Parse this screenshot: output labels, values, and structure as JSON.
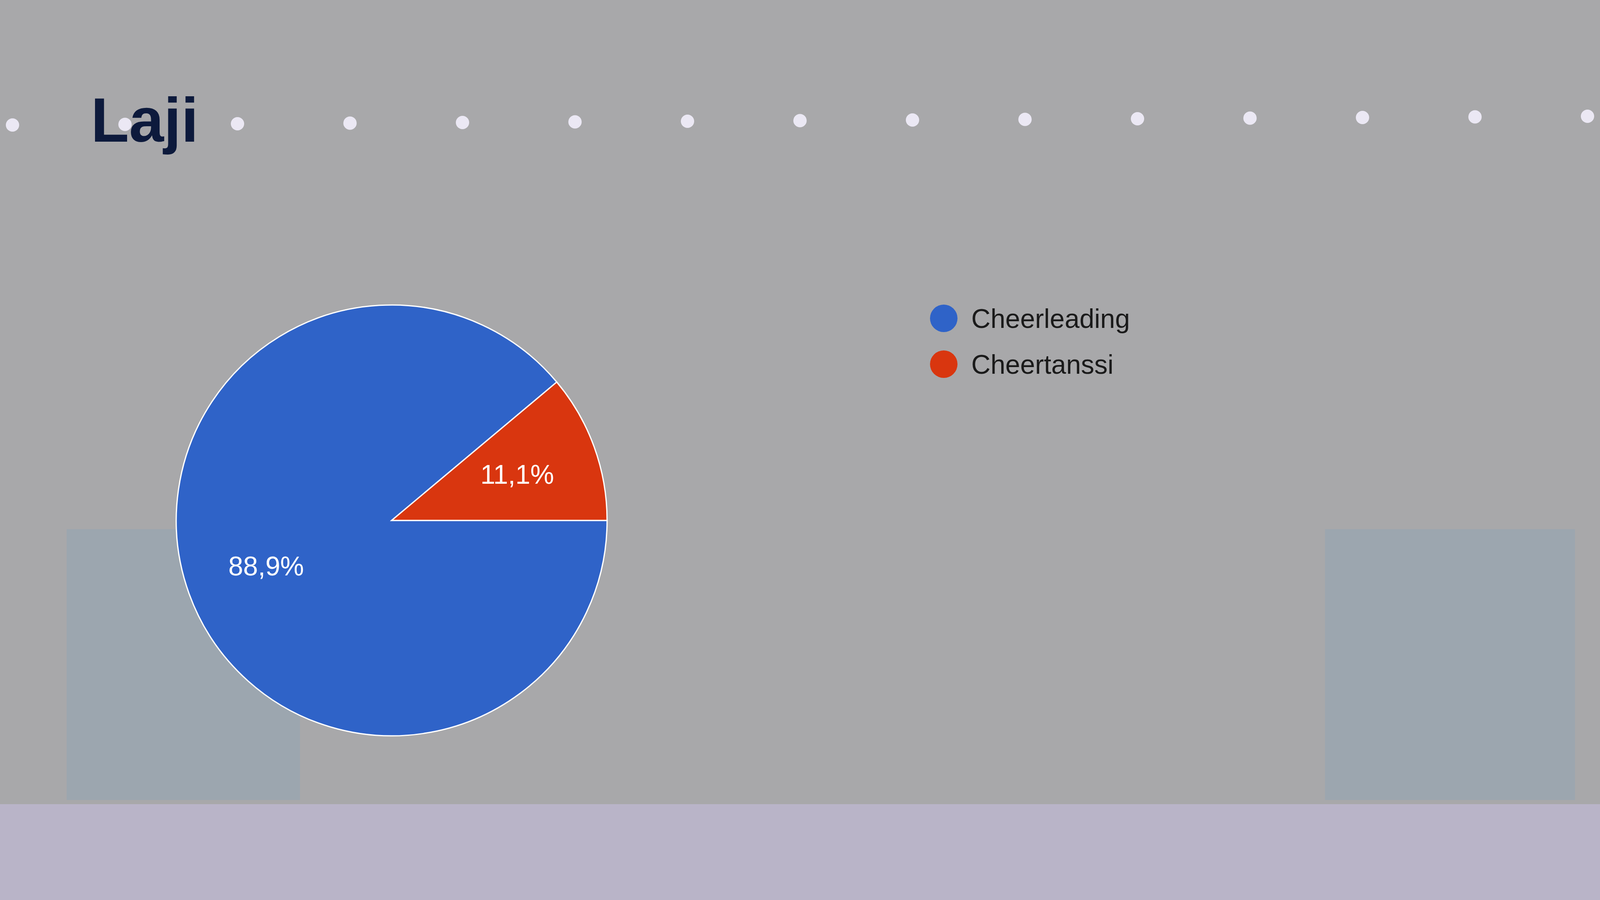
{
  "chart_data": {
    "type": "pie",
    "title": "Laji",
    "categories": [
      "Cheerleading",
      "Cheertanssi"
    ],
    "values": [
      88.9,
      11.1
    ],
    "value_labels": [
      "88,9%",
      "11,1%"
    ],
    "colors": [
      "#2f63c8",
      "#d9360f"
    ],
    "data_labels": true,
    "legend": "right"
  }
}
